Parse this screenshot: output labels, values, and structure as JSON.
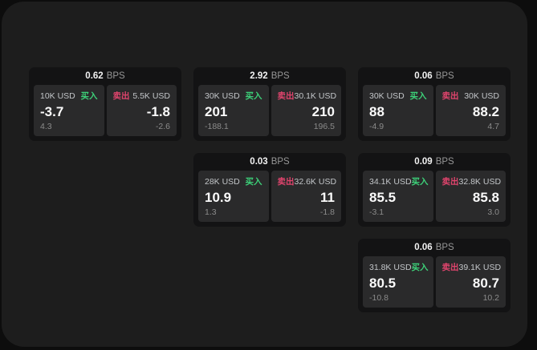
{
  "labels": {
    "bps": "BPS",
    "buy": "买入",
    "sell": "卖出"
  },
  "colors": {
    "buy": "#3dd179",
    "sell": "#e0446d",
    "panel_bg": "#1d1d1d",
    "card_bg": "#131314",
    "side_bg": "#2a2a2b"
  },
  "cards": [
    {
      "col": 1,
      "row": 1,
      "bps": "0.62",
      "buy": {
        "size": "10K USD",
        "price": "-3.7",
        "delta": "4.3"
      },
      "sell": {
        "size": "5.5K USD",
        "price": "-1.8",
        "delta": "-2.6"
      }
    },
    {
      "col": 2,
      "row": 1,
      "bps": "2.92",
      "buy": {
        "size": "30K USD",
        "price": "201",
        "delta": "-188.1"
      },
      "sell": {
        "size": "30.1K USD",
        "price": "210",
        "delta": "196.5"
      }
    },
    {
      "col": 3,
      "row": 1,
      "bps": "0.06",
      "buy": {
        "size": "30K USD",
        "price": "88",
        "delta": "-4.9"
      },
      "sell": {
        "size": "30K USD",
        "price": "88.2",
        "delta": "4.7"
      }
    },
    {
      "col": 2,
      "row": 2,
      "bps": "0.03",
      "buy": {
        "size": "28K USD",
        "price": "10.9",
        "delta": "1.3"
      },
      "sell": {
        "size": "32.6K USD",
        "price": "11",
        "delta": "-1.8"
      }
    },
    {
      "col": 3,
      "row": 2,
      "bps": "0.09",
      "buy": {
        "size": "34.1K USD",
        "price": "85.5",
        "delta": "-3.1"
      },
      "sell": {
        "size": "32.8K USD",
        "price": "85.8",
        "delta": "3.0"
      }
    },
    {
      "col": 3,
      "row": 3,
      "bps": "0.06",
      "buy": {
        "size": "31.8K USD",
        "price": "80.5",
        "delta": "-10.8"
      },
      "sell": {
        "size": "39.1K USD",
        "price": "80.7",
        "delta": "10.2"
      }
    }
  ]
}
